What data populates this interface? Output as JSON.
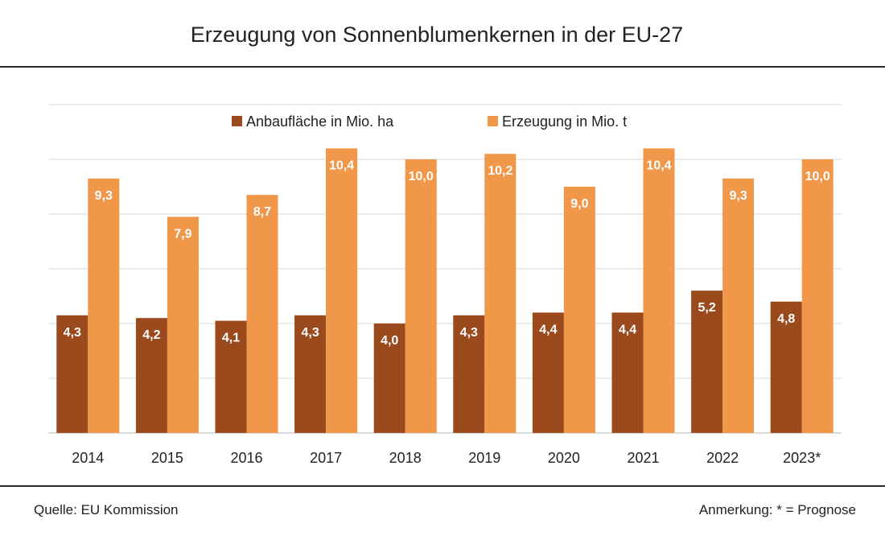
{
  "chart_data": {
    "type": "bar",
    "title": "Erzeugung von Sonnenblumenkernen in der EU-27",
    "categories": [
      "2014",
      "2015",
      "2016",
      "2017",
      "2018",
      "2019",
      "2020",
      "2021",
      "2022",
      "2023*"
    ],
    "series": [
      {
        "name": "Anbaufläche in Mio. ha",
        "color": "#9a4a1c",
        "values": [
          4.3,
          4.2,
          4.1,
          4.3,
          4.0,
          4.3,
          4.4,
          4.4,
          5.2,
          4.8
        ],
        "labels": [
          "4,3",
          "4,2",
          "4,1",
          "4,3",
          "4,0",
          "4,3",
          "4,4",
          "4,4",
          "5,2",
          "4,8"
        ]
      },
      {
        "name": "Erzeugung in Mio. t",
        "color": "#f0974a",
        "values": [
          9.3,
          7.9,
          8.7,
          10.4,
          10.0,
          10.2,
          9.0,
          10.4,
          9.3,
          10.0
        ],
        "labels": [
          "9,3",
          "7,9",
          "8,7",
          "10,4",
          "10,0",
          "10,2",
          "9,0",
          "10,4",
          "9,3",
          "10,0"
        ]
      }
    ],
    "ylim": [
      0,
      12
    ],
    "grid": true,
    "legend": "top-center",
    "xlabel": "",
    "ylabel": ""
  },
  "footer": {
    "source": "Quelle:  EU Kommission",
    "note": "Anmerkung: * = Prognose"
  }
}
